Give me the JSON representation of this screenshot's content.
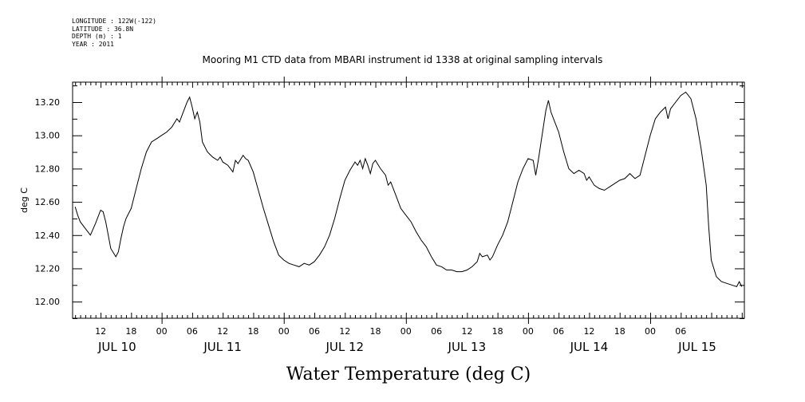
{
  "header_info": [
    "LONGITUDE : 122W(-122)",
    "LATITUDE : 36.8N",
    "DEPTH (m) : 1",
    "YEAR : 2011"
  ],
  "chart_data": {
    "type": "line",
    "title": "Mooring M1 CTD data from MBARI instrument id 1338 at original sampling intervals",
    "xlabel": "Water Temperature (deg C)",
    "ylabel": "deg C",
    "ylim": [
      11.9,
      13.32
    ],
    "xlim_hours": [
      6.5,
      138.5
    ],
    "y_ticks": [
      "12.00",
      "12.20",
      "12.40",
      "12.60",
      "12.80",
      "13.00",
      "13.20"
    ],
    "x_hour_labels": [
      "12",
      "18",
      "00",
      "06",
      "12",
      "18",
      "00",
      "06",
      "12",
      "18",
      "00",
      "06",
      "12",
      "18",
      "00",
      "06",
      "12",
      "18",
      "00",
      "06"
    ],
    "x_day_labels": [
      "JUL 10",
      "JUL 11",
      "JUL 12",
      "JUL 13",
      "JUL 14",
      "JUL 15"
    ],
    "line_color": "#000000",
    "grid": false,
    "series": [
      {
        "values": [
          [
            7,
            12.57
          ],
          [
            7.5,
            12.52
          ],
          [
            8,
            12.48
          ],
          [
            9,
            12.44
          ],
          [
            10,
            12.4
          ],
          [
            11,
            12.47
          ],
          [
            12,
            12.55
          ],
          [
            12.5,
            12.54
          ],
          [
            13,
            12.48
          ],
          [
            13.5,
            12.4
          ],
          [
            14,
            12.32
          ],
          [
            15,
            12.27
          ],
          [
            15.5,
            12.3
          ],
          [
            16,
            12.38
          ],
          [
            16.5,
            12.45
          ],
          [
            17,
            12.5
          ],
          [
            18,
            12.56
          ],
          [
            19,
            12.68
          ],
          [
            20,
            12.8
          ],
          [
            21,
            12.9
          ],
          [
            22,
            12.96
          ],
          [
            23,
            12.98
          ],
          [
            24,
            13.0
          ],
          [
            25,
            13.02
          ],
          [
            26,
            13.05
          ],
          [
            27,
            13.1
          ],
          [
            27.5,
            13.08
          ],
          [
            28,
            13.12
          ],
          [
            29,
            13.2
          ],
          [
            29.5,
            13.23
          ],
          [
            30,
            13.17
          ],
          [
            30.5,
            13.1
          ],
          [
            31,
            13.14
          ],
          [
            31.5,
            13.08
          ],
          [
            32,
            12.96
          ],
          [
            33,
            12.9
          ],
          [
            34,
            12.87
          ],
          [
            35,
            12.85
          ],
          [
            35.5,
            12.87
          ],
          [
            36,
            12.84
          ],
          [
            37,
            12.82
          ],
          [
            38,
            12.78
          ],
          [
            38.5,
            12.85
          ],
          [
            39,
            12.83
          ],
          [
            40,
            12.88
          ],
          [
            40.5,
            12.86
          ],
          [
            41,
            12.85
          ],
          [
            42,
            12.78
          ],
          [
            43,
            12.67
          ],
          [
            44,
            12.56
          ],
          [
            45,
            12.46
          ],
          [
            46,
            12.36
          ],
          [
            47,
            12.28
          ],
          [
            48,
            12.25
          ],
          [
            49,
            12.23
          ],
          [
            50,
            12.22
          ],
          [
            51,
            12.21
          ],
          [
            52,
            12.23
          ],
          [
            53,
            12.22
          ],
          [
            54,
            12.24
          ],
          [
            55,
            12.28
          ],
          [
            56,
            12.33
          ],
          [
            57,
            12.4
          ],
          [
            58,
            12.5
          ],
          [
            59,
            12.62
          ],
          [
            60,
            12.73
          ],
          [
            61,
            12.79
          ],
          [
            62,
            12.84
          ],
          [
            62.5,
            12.82
          ],
          [
            63,
            12.85
          ],
          [
            63.5,
            12.8
          ],
          [
            64,
            12.86
          ],
          [
            64.5,
            12.82
          ],
          [
            65,
            12.77
          ],
          [
            65.5,
            12.83
          ],
          [
            66,
            12.85
          ],
          [
            67,
            12.8
          ],
          [
            68,
            12.76
          ],
          [
            68.5,
            12.7
          ],
          [
            69,
            12.72
          ],
          [
            70,
            12.64
          ],
          [
            71,
            12.56
          ],
          [
            72,
            12.52
          ],
          [
            73,
            12.48
          ],
          [
            74,
            12.42
          ],
          [
            75,
            12.37
          ],
          [
            76,
            12.33
          ],
          [
            77,
            12.27
          ],
          [
            78,
            12.22
          ],
          [
            79,
            12.21
          ],
          [
            80,
            12.19
          ],
          [
            81,
            12.19
          ],
          [
            82,
            12.18
          ],
          [
            83,
            12.18
          ],
          [
            84,
            12.19
          ],
          [
            85,
            12.21
          ],
          [
            86,
            12.24
          ],
          [
            86.5,
            12.29
          ],
          [
            87,
            12.27
          ],
          [
            88,
            12.28
          ],
          [
            88.5,
            12.25
          ],
          [
            89,
            12.27
          ],
          [
            90,
            12.34
          ],
          [
            91,
            12.4
          ],
          [
            92,
            12.48
          ],
          [
            93,
            12.6
          ],
          [
            94,
            12.72
          ],
          [
            95,
            12.8
          ],
          [
            96,
            12.86
          ],
          [
            97,
            12.85
          ],
          [
            97.5,
            12.76
          ],
          [
            98,
            12.85
          ],
          [
            99,
            13.05
          ],
          [
            99.5,
            13.15
          ],
          [
            100,
            13.21
          ],
          [
            100.5,
            13.14
          ],
          [
            101,
            13.1
          ],
          [
            102,
            13.02
          ],
          [
            103,
            12.9
          ],
          [
            104,
            12.8
          ],
          [
            105,
            12.77
          ],
          [
            106,
            12.79
          ],
          [
            107,
            12.77
          ],
          [
            107.5,
            12.73
          ],
          [
            108,
            12.75
          ],
          [
            109,
            12.7
          ],
          [
            110,
            12.68
          ],
          [
            111,
            12.67
          ],
          [
            112,
            12.69
          ],
          [
            113,
            12.71
          ],
          [
            114,
            12.73
          ],
          [
            115,
            12.74
          ],
          [
            116,
            12.77
          ],
          [
            117,
            12.74
          ],
          [
            118,
            12.76
          ],
          [
            119,
            12.88
          ],
          [
            120,
            13.0
          ],
          [
            121,
            13.1
          ],
          [
            122,
            13.14
          ],
          [
            123,
            13.17
          ],
          [
            123.5,
            13.1
          ],
          [
            124,
            13.16
          ],
          [
            125,
            13.2
          ],
          [
            126,
            13.24
          ],
          [
            127,
            13.26
          ],
          [
            128,
            13.22
          ],
          [
            129,
            13.1
          ],
          [
            130,
            12.92
          ],
          [
            131,
            12.7
          ],
          [
            131.5,
            12.45
          ],
          [
            132,
            12.25
          ],
          [
            133,
            12.15
          ],
          [
            134,
            12.12
          ],
          [
            135,
            12.11
          ],
          [
            136,
            12.1
          ],
          [
            137,
            12.09
          ],
          [
            137.5,
            12.12
          ],
          [
            138,
            12.09
          ]
        ]
      }
    ]
  },
  "x_axis_caption": "Water Temperature (deg C)"
}
